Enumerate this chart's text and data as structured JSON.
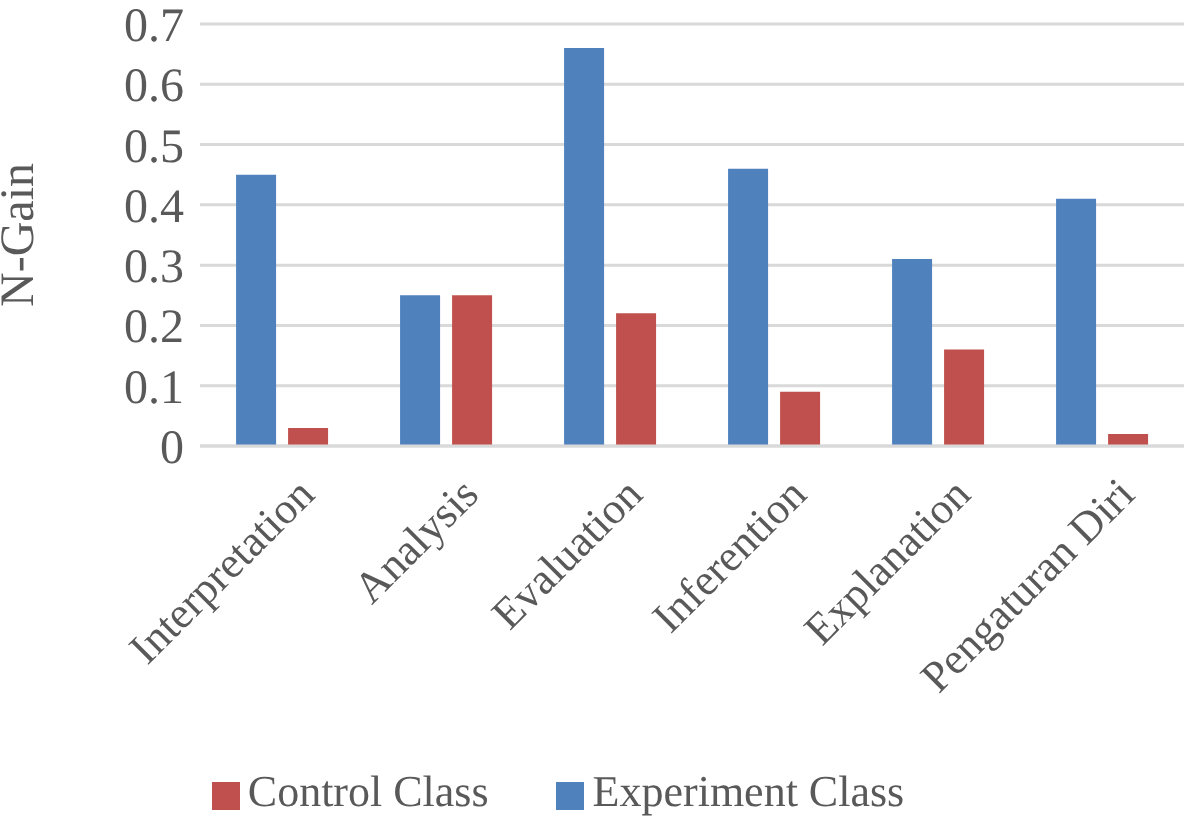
{
  "chart_data": {
    "type": "bar",
    "ylabel": "N-Gain",
    "categories": [
      "Interpretation",
      "Analysis",
      "Evaluation",
      "Inferention",
      "Explanation",
      "Pengaturan Diri"
    ],
    "series": [
      {
        "name": "Experiment Class",
        "color": "#4f81bd",
        "values": [
          0.45,
          0.25,
          0.66,
          0.46,
          0.31,
          0.41
        ]
      },
      {
        "name": "Control Class",
        "color": "#c0504d",
        "values": [
          0.03,
          0.25,
          0.22,
          0.09,
          0.16,
          0.02
        ]
      }
    ],
    "ylim": [
      0,
      0.7
    ],
    "yticks": [
      0,
      0.1,
      0.2,
      0.3,
      0.4,
      0.5,
      0.6,
      0.7
    ],
    "grid": "y",
    "legend": "bottom"
  }
}
